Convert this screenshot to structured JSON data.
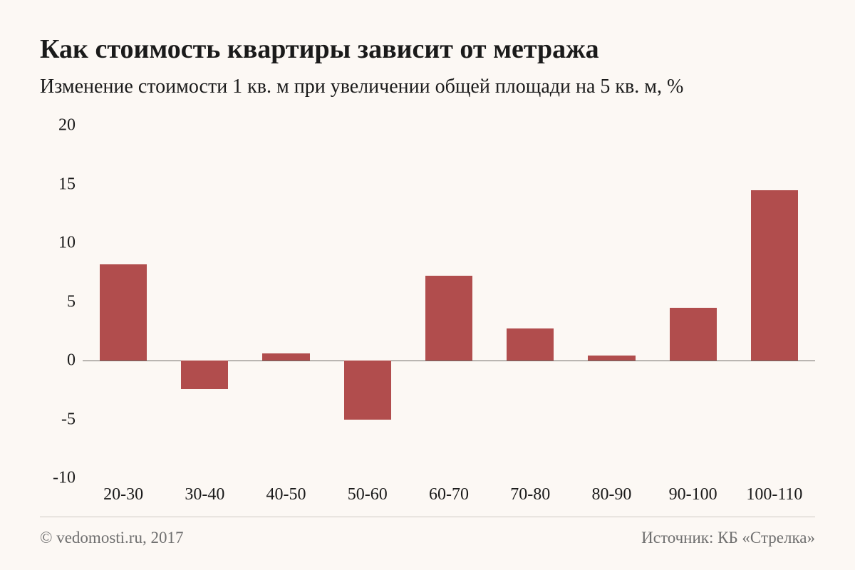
{
  "background_color": "#fcf8f4",
  "text_color": "#1a1a1a",
  "footer_text_color": "#6f6f6f",
  "footer_border_color": "#cfc9c3",
  "title": {
    "text": "Как стоимость квартиры зависит от метража",
    "fontsize": 38,
    "weight": 700
  },
  "subtitle": {
    "text": "Изменение стоимости 1 кв. м при увеличении общей площади на 5 кв. м, %",
    "fontsize": 28,
    "weight": 400
  },
  "chart": {
    "type": "bar",
    "categories": [
      "20-30",
      "30-40",
      "40-50",
      "50-60",
      "60-70",
      "70-80",
      "80-90",
      "90-100",
      "100-110"
    ],
    "values": [
      8.2,
      -2.4,
      0.6,
      -5.0,
      7.2,
      2.7,
      0.4,
      4.5,
      14.5
    ],
    "bar_color": "#b14d4d",
    "ylim": [
      -10,
      20
    ],
    "yticks": [
      -10,
      -5,
      0,
      5,
      10,
      15,
      20
    ],
    "zero_line_color": "#6f6a65",
    "zero_line_width": 1,
    "grid_color": "#e6e0da",
    "axis_fontsize": 24,
    "bar_width_ratio": 0.58
  },
  "footer": {
    "left": "© vedomosti.ru, 2017",
    "right": "Источник: КБ «Стрелка»",
    "fontsize": 23
  }
}
